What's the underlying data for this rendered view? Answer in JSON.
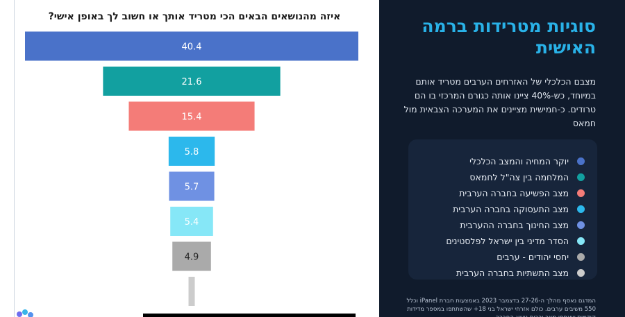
{
  "chart_data": {
    "type": "bar",
    "title": "איזה מהנושאים הבאים הכי מטריד אותך או חשוב לך באופן אישי?",
    "categories": [
      "יוקר המחיה והמצב הכלכלי",
      "המלחמה בין צה\"ל לחמאס",
      "מצב הפשיעה בחברה הערבית",
      "מצב התעסוקה בחברה הערבית",
      "מצב החינוך בחברה ההערבית",
      "הסדר מדיני בין ישראל לפלסטינים",
      "יחסי יהודים - ערבים",
      "מצב התשתיות בחברה הערבית"
    ],
    "values": [
      40.4,
      21.6,
      15.4,
      5.8,
      5.7,
      5.4,
      4.9,
      1
    ],
    "value_labels": [
      "40.4",
      "21.6",
      "15.4",
      "5.8",
      "5.7",
      "5.4",
      "4.9",
      ""
    ],
    "colors": [
      "#4a72c9",
      "#12a0a0",
      "#f47c78",
      "#2cb8ec",
      "#6f91e3",
      "#86e7f7",
      "#aaaaaa",
      "#cccccc"
    ],
    "orientation": "funnel",
    "legend_position": "right"
  },
  "panel": {
    "title": "סוגיות מטרידות ברמה האישית",
    "description": "מצבם הכלכלי של האזרחים הערבים מטריד אותם במיוחד, כש-40% ציינו אותה כגורם המרכזי בו הם טרודים. כ-חמישית מציינים את המערכה הצבאית מול חמאס",
    "footnote": "המדגם נאסף מהלך ה-27-26 בדצמבר 2023 באמצעות חברת iPanel וכלל 550 משיבים ערבים. כולם אזרחי ישראל בני 18+ שהשתתפו במספר מדידות קודמות שאספו מצב ורבות נושא החברה."
  }
}
